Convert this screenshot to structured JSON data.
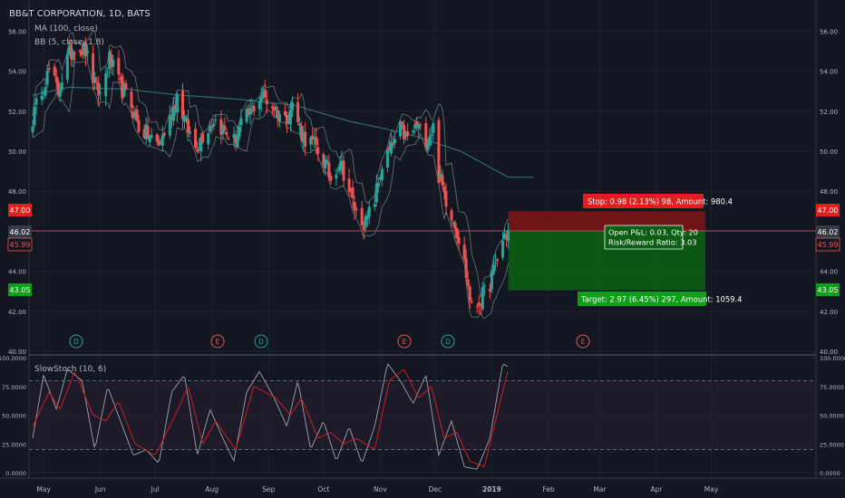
{
  "header": {
    "symbol": "BB&T CORPORATION, 1D, BATS",
    "indicator_ma": "MA (100, close)",
    "indicator_bb": "BB (5, close, 1.8)",
    "indicator_stoch": "SlowStoch (10, 6)"
  },
  "colors": {
    "background": "#131722",
    "up": "#26a69a",
    "down": "#ef5350",
    "ma": "#2f6b73",
    "bb": "#7f8c94",
    "stop_zone": "#7a1416",
    "target_zone": "#0b5e12",
    "stoch_k": "#9ea4ab",
    "stoch_d": "#cc1f1f"
  },
  "position": {
    "stop_label": "Stop: 0.98 (2.13%) 98, Amount: 980.4",
    "target_label": "Target: 2.97 (6.45%) 297, Amount: 1059.4",
    "pnl_label": "Open P&L: 0.03, Qty: 20",
    "rr_label": "Risk/Reward Ratio: 3.03",
    "entry": 46.02,
    "stop": 47.0,
    "target": 43.05,
    "last": 45.99
  },
  "axis": {
    "price_ticks": [
      "40.00",
      "42.00",
      "44.00",
      "46.00",
      "48.00",
      "50.00",
      "52.00",
      "54.00",
      "56.00"
    ],
    "stoch_ticks": [
      "0.0000",
      "25.0000",
      "50.0000",
      "75.0000",
      "100.0000"
    ],
    "months": [
      "May",
      "Jun",
      "Jul",
      "Aug",
      "Sep",
      "Oct",
      "Nov",
      "Dec",
      "2019",
      "Feb",
      "Mar",
      "Apr",
      "May"
    ],
    "badges": {
      "stop": "47.00",
      "entry": "46.02",
      "last": "45.99",
      "target": "43.05"
    }
  },
  "events": [
    "D",
    "E",
    "D",
    "E",
    "D",
    "E"
  ],
  "chart_data": {
    "type": "candlestick",
    "title": "BB&T CORPORATION, 1D, BATS",
    "price_range": [
      40,
      57
    ],
    "stoch_range": [
      0,
      100
    ],
    "close_anchors": [
      [
        "2018-04-25",
        51.6
      ],
      [
        "2018-04-30",
        53.2
      ],
      [
        "2018-05-04",
        54.0
      ],
      [
        "2018-05-09",
        53.0
      ],
      [
        "2018-05-14",
        54.6
      ],
      [
        "2018-05-18",
        55.3
      ],
      [
        "2018-05-24",
        55.0
      ],
      [
        "2018-05-29",
        53.3
      ],
      [
        "2018-06-01",
        52.8
      ],
      [
        "2018-06-06",
        54.6
      ],
      [
        "2018-06-12",
        53.2
      ],
      [
        "2018-06-18",
        52.3
      ],
      [
        "2018-06-22",
        51.2
      ],
      [
        "2018-06-27",
        50.8
      ],
      [
        "2018-07-03",
        50.3
      ],
      [
        "2018-07-09",
        51.6
      ],
      [
        "2018-07-13",
        52.8
      ],
      [
        "2018-07-18",
        51.3
      ],
      [
        "2018-07-23",
        50.2
      ],
      [
        "2018-07-27",
        50.8
      ],
      [
        "2018-08-02",
        51.6
      ],
      [
        "2018-08-08",
        51.0
      ],
      [
        "2018-08-13",
        50.5
      ],
      [
        "2018-08-17",
        51.3
      ],
      [
        "2018-08-23",
        52.1
      ],
      [
        "2018-08-28",
        52.8
      ],
      [
        "2018-09-04",
        52.2
      ],
      [
        "2018-09-10",
        51.6
      ],
      [
        "2018-09-14",
        52.3
      ],
      [
        "2018-09-20",
        50.7
      ],
      [
        "2018-09-26",
        50.3
      ],
      [
        "2018-10-01",
        49.6
      ],
      [
        "2018-10-05",
        48.6
      ],
      [
        "2018-10-10",
        49.6
      ],
      [
        "2018-10-15",
        48.0
      ],
      [
        "2018-10-19",
        46.9
      ],
      [
        "2018-10-24",
        46.4
      ],
      [
        "2018-10-29",
        47.6
      ],
      [
        "2018-11-02",
        49.3
      ],
      [
        "2018-11-07",
        50.1
      ],
      [
        "2018-11-12",
        51.1
      ],
      [
        "2018-11-16",
        50.6
      ],
      [
        "2018-11-21",
        51.3
      ],
      [
        "2018-11-26",
        50.6
      ],
      [
        "2018-11-30",
        51.2
      ],
      [
        "2018-12-03",
        48.8
      ],
      [
        "2018-12-07",
        47.6
      ],
      [
        "2018-12-12",
        46.4
      ],
      [
        "2018-12-17",
        44.4
      ],
      [
        "2018-12-21",
        42.1
      ],
      [
        "2018-12-26",
        42.6
      ],
      [
        "2018-12-31",
        43.4
      ],
      [
        "2019-01-04",
        44.6
      ],
      [
        "2019-01-08",
        45.8
      ],
      [
        "2019-01-10",
        46.0
      ]
    ],
    "ma100_anchors": [
      [
        "2018-04-25",
        52.8
      ],
      [
        "2018-05-15",
        53.2
      ],
      [
        "2018-06-15",
        53.1
      ],
      [
        "2018-07-15",
        52.8
      ],
      [
        "2018-08-15",
        52.6
      ],
      [
        "2018-09-15",
        52.3
      ],
      [
        "2018-10-15",
        51.5
      ],
      [
        "2018-11-15",
        50.9
      ],
      [
        "2018-12-15",
        50.0
      ],
      [
        "2019-01-10",
        48.7
      ]
    ],
    "stoch_k_anchors": [
      [
        "2018-04-25",
        30
      ],
      [
        "2018-05-01",
        85
      ],
      [
        "2018-05-08",
        55
      ],
      [
        "2018-05-14",
        90
      ],
      [
        "2018-05-22",
        80
      ],
      [
        "2018-05-29",
        20
      ],
      [
        "2018-06-05",
        75
      ],
      [
        "2018-06-12",
        45
      ],
      [
        "2018-06-19",
        15
      ],
      [
        "2018-06-26",
        20
      ],
      [
        "2018-07-03",
        8
      ],
      [
        "2018-07-10",
        70
      ],
      [
        "2018-07-17",
        85
      ],
      [
        "2018-07-24",
        15
      ],
      [
        "2018-07-31",
        55
      ],
      [
        "2018-08-07",
        30
      ],
      [
        "2018-08-13",
        10
      ],
      [
        "2018-08-20",
        70
      ],
      [
        "2018-08-27",
        88
      ],
      [
        "2018-09-04",
        65
      ],
      [
        "2018-09-11",
        40
      ],
      [
        "2018-09-17",
        80
      ],
      [
        "2018-09-24",
        20
      ],
      [
        "2018-10-01",
        45
      ],
      [
        "2018-10-08",
        10
      ],
      [
        "2018-10-15",
        40
      ],
      [
        "2018-10-22",
        8
      ],
      [
        "2018-10-29",
        40
      ],
      [
        "2018-11-05",
        95
      ],
      [
        "2018-11-12",
        80
      ],
      [
        "2018-11-19",
        60
      ],
      [
        "2018-11-26",
        85
      ],
      [
        "2018-12-03",
        15
      ],
      [
        "2018-12-10",
        45
      ],
      [
        "2018-12-17",
        5
      ],
      [
        "2018-12-24",
        3
      ],
      [
        "2018-12-31",
        30
      ],
      [
        "2019-01-07",
        95
      ],
      [
        "2019-01-10",
        92
      ]
    ],
    "stoch_d_anchors": [
      [
        "2018-04-25",
        40
      ],
      [
        "2018-05-04",
        70
      ],
      [
        "2018-05-10",
        55
      ],
      [
        "2018-05-18",
        88
      ],
      [
        "2018-05-28",
        50
      ],
      [
        "2018-06-04",
        45
      ],
      [
        "2018-06-11",
        62
      ],
      [
        "2018-06-20",
        25
      ],
      [
        "2018-07-01",
        15
      ],
      [
        "2018-07-12",
        50
      ],
      [
        "2018-07-19",
        75
      ],
      [
        "2018-07-27",
        25
      ],
      [
        "2018-08-03",
        45
      ],
      [
        "2018-08-14",
        20
      ],
      [
        "2018-08-24",
        75
      ],
      [
        "2018-09-05",
        65
      ],
      [
        "2018-09-13",
        50
      ],
      [
        "2018-09-19",
        65
      ],
      [
        "2018-09-28",
        30
      ],
      [
        "2018-10-05",
        35
      ],
      [
        "2018-10-12",
        25
      ],
      [
        "2018-10-19",
        30
      ],
      [
        "2018-10-29",
        20
      ],
      [
        "2018-11-06",
        80
      ],
      [
        "2018-11-14",
        90
      ],
      [
        "2018-11-22",
        65
      ],
      [
        "2018-11-29",
        75
      ],
      [
        "2018-12-06",
        30
      ],
      [
        "2018-12-13",
        35
      ],
      [
        "2018-12-20",
        10
      ],
      [
        "2018-12-28",
        5
      ],
      [
        "2019-01-03",
        45
      ],
      [
        "2019-01-10",
        90
      ]
    ]
  }
}
